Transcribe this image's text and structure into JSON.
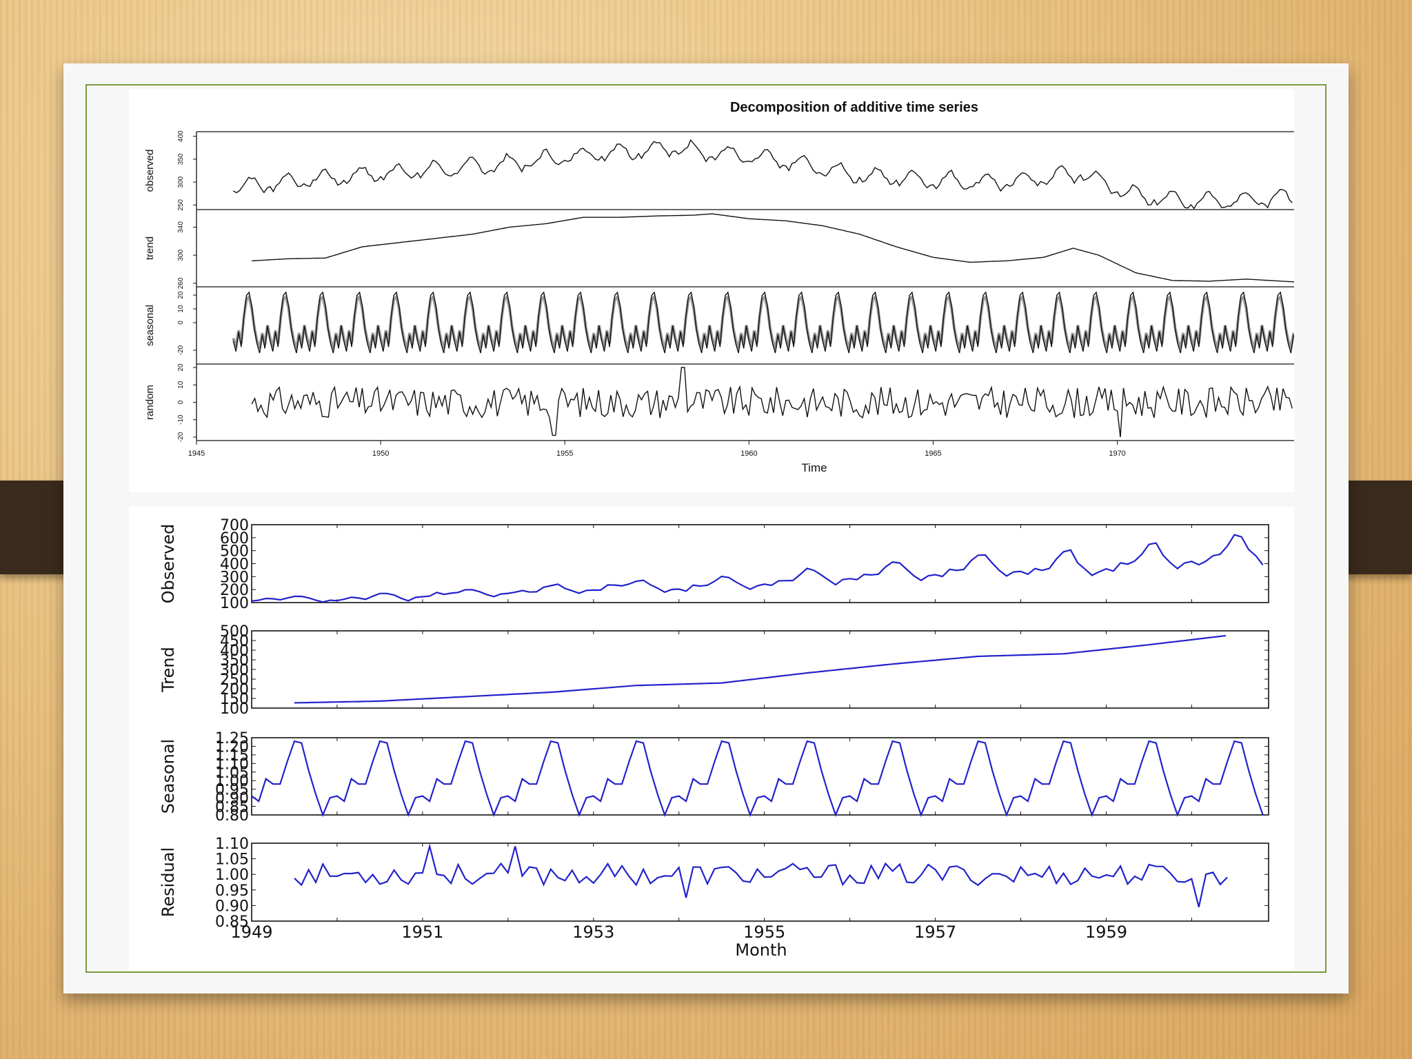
{
  "chart_data": [
    {
      "type": "line",
      "title": "Decomposition of additive time series",
      "xlabel": "Time",
      "xlim": [
        1945,
        1974.8
      ],
      "x_ticks": [
        "1945",
        "1950",
        "1955",
        "1960",
        "1965",
        "1970"
      ],
      "x_start": 1946.0,
      "line_color": "#111111",
      "panels": [
        {
          "label": "observed",
          "y_ticks": [
            "250",
            "300",
            "350",
            "400"
          ],
          "ylim": [
            240,
            410
          ],
          "knots": [
            [
              1946,
              290
            ],
            [
              1948,
              305
            ],
            [
              1950,
              320
            ],
            [
              1952,
              330
            ],
            [
              1954,
              345
            ],
            [
              1956,
              365
            ],
            [
              1958,
              375
            ],
            [
              1959.5,
              360
            ],
            [
              1961,
              345
            ],
            [
              1963,
              315
            ],
            [
              1965,
              305
            ],
            [
              1967,
              300
            ],
            [
              1969,
              320
            ],
            [
              1970.5,
              270
            ],
            [
              1972,
              260
            ],
            [
              1974.8,
              265
            ]
          ],
          "seasonal_amp": 18,
          "noise_amp": 10
        },
        {
          "label": "trend",
          "y_ticks": [
            "260",
            "300",
            "340"
          ],
          "ylim": [
            255,
            365
          ],
          "start": 1946.5,
          "end": 1974.8,
          "knots": [
            [
              1946.5,
              292
            ],
            [
              1947.5,
              295
            ],
            [
              1948.5,
              296
            ],
            [
              1949.5,
              312
            ],
            [
              1950.5,
              318
            ],
            [
              1951.5,
              324
            ],
            [
              1952.5,
              330
            ],
            [
              1953.5,
              340
            ],
            [
              1954.5,
              345
            ],
            [
              1955.5,
              354
            ],
            [
              1956.5,
              354
            ],
            [
              1957.5,
              356
            ],
            [
              1958.5,
              357
            ],
            [
              1959,
              359
            ],
            [
              1960,
              352
            ],
            [
              1961,
              349
            ],
            [
              1962,
              342
            ],
            [
              1963,
              330
            ],
            [
              1964,
              312
            ],
            [
              1965,
              297
            ],
            [
              1966,
              290
            ],
            [
              1967,
              292
            ],
            [
              1968,
              297
            ],
            [
              1968.8,
              310
            ],
            [
              1969.5,
              300
            ],
            [
              1970.5,
              275
            ],
            [
              1971.5,
              264
            ],
            [
              1972.5,
              263
            ],
            [
              1973.5,
              266
            ],
            [
              1974.8,
              262
            ]
          ]
        },
        {
          "label": "seasonal",
          "y_ticks": [
            "-20",
            "0",
            "10",
            "20"
          ],
          "ylim": [
            -30,
            26
          ],
          "amp": 22
        },
        {
          "label": "random",
          "y_ticks": [
            "-20",
            "-10",
            "0",
            "10",
            "20"
          ],
          "ylim": [
            -22,
            22
          ],
          "start": 1946.5,
          "noise_amp": 9
        }
      ]
    },
    {
      "type": "line",
      "title": "",
      "xlabel": "Month",
      "xlim": [
        1949,
        1960.9
      ],
      "x_ticks": [
        "1949",
        "1951",
        "1953",
        "1955",
        "1957",
        "1959"
      ],
      "line_color": "#2222cc",
      "panels": [
        {
          "label": "Observed",
          "y_ticks": [
            "100",
            "200",
            "300",
            "400",
            "500",
            "600",
            "700"
          ],
          "ylim": [
            100,
            700
          ],
          "values": [
            112,
            118,
            132,
            129,
            121,
            135,
            148,
            148,
            136,
            119,
            104,
            118,
            115,
            126,
            141,
            135,
            125,
            149,
            170,
            170,
            158,
            133,
            114,
            140,
            145,
            150,
            178,
            163,
            172,
            178,
            199,
            199,
            184,
            162,
            146,
            166,
            171,
            180,
            193,
            181,
            183,
            218,
            230,
            242,
            209,
            191,
            172,
            194,
            196,
            196,
            236,
            235,
            229,
            243,
            264,
            272,
            237,
            211,
            180,
            201,
            204,
            188,
            235,
            227,
            234,
            264,
            302,
            293,
            259,
            229,
            203,
            229,
            242,
            233,
            267,
            269,
            270,
            315,
            364,
            347,
            312,
            274,
            237,
            278,
            284,
            277,
            317,
            313,
            318,
            374,
            413,
            405,
            355,
            306,
            271,
            306,
            315,
            301,
            356,
            348,
            355,
            422,
            465,
            467,
            404,
            347,
            305,
            336,
            340,
            318,
            362,
            348,
            363,
            435,
            491,
            505,
            404,
            359,
            310,
            337,
            360,
            342,
            406,
            396,
            420,
            472,
            548,
            559,
            463,
            407,
            362,
            405,
            417,
            391,
            419,
            461,
            472,
            535,
            622,
            606,
            508,
            461,
            390,
            432
          ]
        },
        {
          "label": "Trend",
          "y_ticks": [
            "100",
            "150",
            "200",
            "250",
            "300",
            "350",
            "400",
            "450",
            "500"
          ],
          "ylim": [
            100,
            500
          ],
          "start": 1949.5,
          "end": 1960.42,
          "knots": [
            [
              1949.5,
              127
            ],
            [
              1950.5,
              136
            ],
            [
              1951.5,
              159
            ],
            [
              1952.5,
              182
            ],
            [
              1953.5,
              217
            ],
            [
              1954.5,
              230
            ],
            [
              1955.5,
              282
            ],
            [
              1956.5,
              328
            ],
            [
              1957.5,
              368
            ],
            [
              1958.5,
              381
            ],
            [
              1959.5,
              428
            ],
            [
              1960.42,
              476
            ]
          ]
        },
        {
          "label": "Seasonal",
          "y_ticks": [
            "0.80",
            "0.85",
            "0.90",
            "0.95",
            "1.00",
            "1.05",
            "1.10",
            "1.15",
            "1.20",
            "1.25"
          ],
          "ylim": [
            0.8,
            1.25
          ],
          "monthly": [
            0.91,
            0.88,
            1.01,
            0.98,
            0.98,
            1.11,
            1.23,
            1.22,
            1.06,
            0.92,
            0.8,
            0.9
          ]
        },
        {
          "label": "Residual",
          "y_ticks": [
            "0.85",
            "0.90",
            "0.95",
            "1.00",
            "1.05",
            "1.10"
          ],
          "ylim": [
            0.85,
            1.1
          ],
          "start": 1949.5,
          "end": 1960.42,
          "noise_amp": 0.035
        }
      ]
    }
  ]
}
